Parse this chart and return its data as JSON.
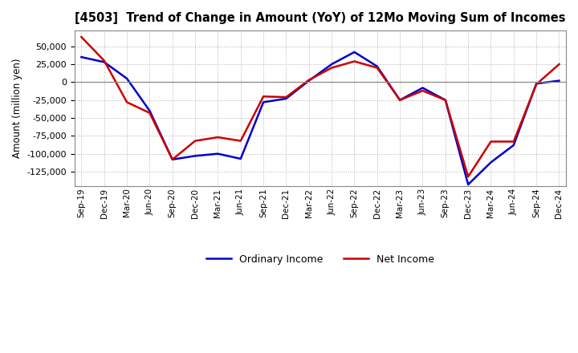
{
  "title": "[4503]  Trend of Change in Amount (YoY) of 12Mo Moving Sum of Incomes",
  "ylabel": "Amount (million yen)",
  "background_color": "#ffffff",
  "grid_color": "#b0b0b0",
  "labels": [
    "Sep-19",
    "Dec-19",
    "Mar-20",
    "Jun-20",
    "Sep-20",
    "Dec-20",
    "Mar-21",
    "Jun-21",
    "Sep-21",
    "Dec-21",
    "Mar-22",
    "Jun-22",
    "Sep-22",
    "Dec-22",
    "Mar-23",
    "Jun-23",
    "Sep-23",
    "Dec-23",
    "Mar-24",
    "Jun-24",
    "Sep-24",
    "Dec-24"
  ],
  "ordinary_income": [
    35000,
    28000,
    5000,
    -40000,
    -108000,
    -103000,
    -100000,
    -107000,
    -28000,
    -23000,
    2000,
    25000,
    42000,
    22000,
    -25000,
    -8000,
    -25000,
    -143000,
    -112000,
    -88000,
    -2000,
    2000
  ],
  "net_income": [
    63000,
    30000,
    -28000,
    -43000,
    -108000,
    -82000,
    -77000,
    -82000,
    -20000,
    -21000,
    3000,
    20000,
    29000,
    20000,
    -25000,
    -12000,
    -25000,
    -132000,
    -83000,
    -83000,
    -3000,
    25000
  ],
  "ordinary_color": "#0000cc",
  "net_color": "#cc0000",
  "ylim": [
    -145000,
    72000
  ],
  "yticks": [
    -125000,
    -100000,
    -75000,
    -50000,
    -25000,
    0,
    25000,
    50000
  ],
  "line_width": 1.8,
  "legend_ordinary": "Ordinary Income",
  "legend_net": "Net Income"
}
